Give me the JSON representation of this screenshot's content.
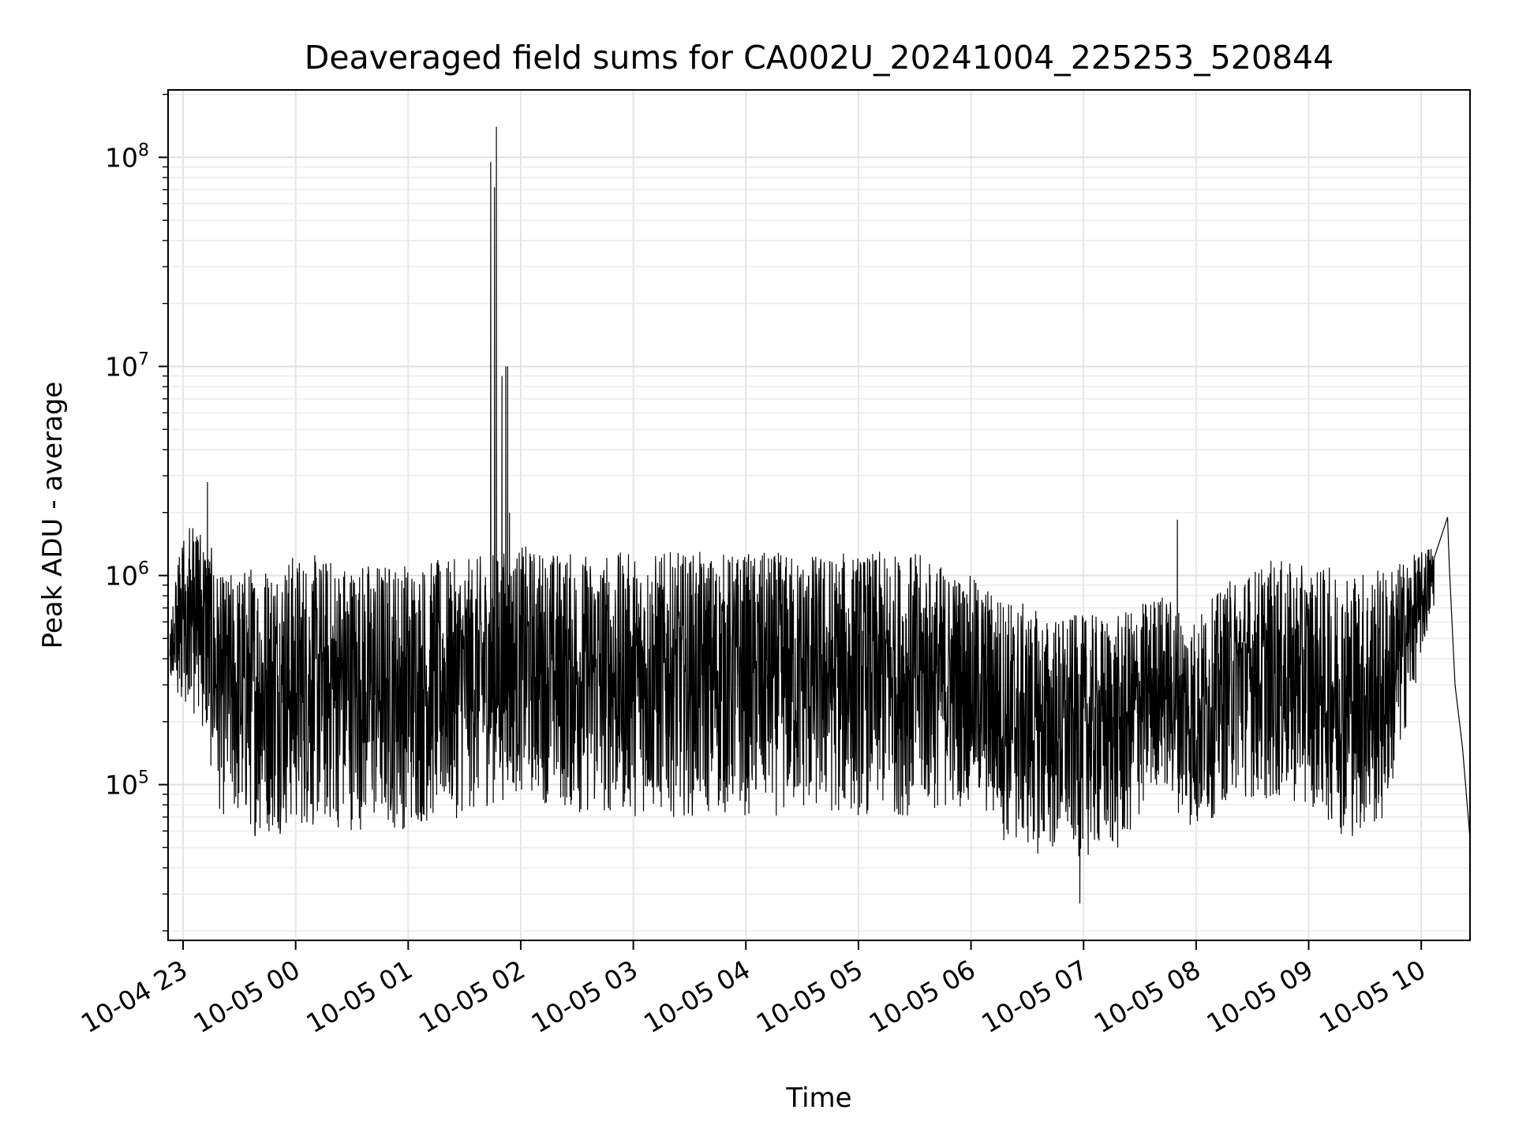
{
  "chart_data": {
    "type": "line",
    "title": "Deaveraged field sums for CA002U_20241004_225253_520844",
    "xlabel": "Time",
    "ylabel": "Peak ADU - average",
    "yscale": "log",
    "x_range": [
      "2024-10-04 22:52",
      "2024-10-05 10:26"
    ],
    "ylim": [
      18000,
      210000000
    ],
    "grid": true,
    "line_color": "#000000",
    "x_ticks": [
      "10-04 23",
      "10-05 00",
      "10-05 01",
      "10-05 02",
      "10-05 03",
      "10-05 04",
      "10-05 05",
      "10-05 06",
      "10-05 07",
      "10-05 08",
      "10-05 09",
      "10-05 10"
    ],
    "y_ticks": [
      {
        "value": 100000,
        "base": "10",
        "exp": "5"
      },
      {
        "value": 1000000,
        "base": "10",
        "exp": "6"
      },
      {
        "value": 10000000,
        "base": "10",
        "exp": "7"
      },
      {
        "value": 100000000,
        "base": "10",
        "exp": "8"
      }
    ],
    "series": [
      {
        "envelope": [
          {
            "t": "2024-10-04 22:53",
            "low": 300000,
            "high": 560000
          },
          {
            "t": "2024-10-04 23:00",
            "low": 250000,
            "high": 1800000
          },
          {
            "t": "2024-10-04 23:10",
            "low": 180000,
            "high": 1900000
          },
          {
            "t": "2024-10-04 23:20",
            "low": 70000,
            "high": 1000000
          },
          {
            "t": "2024-10-04 23:40",
            "low": 55000,
            "high": 1200000
          },
          {
            "t": "2024-10-05 00:00",
            "low": 60000,
            "high": 1300000
          },
          {
            "t": "2024-10-05 00:30",
            "low": 60000,
            "high": 1200000
          },
          {
            "t": "2024-10-05 01:00",
            "low": 60000,
            "high": 1200000
          },
          {
            "t": "2024-10-05 01:30",
            "low": 70000,
            "high": 1200000
          },
          {
            "t": "2024-10-05 02:00",
            "low": 90000,
            "high": 1400000
          },
          {
            "t": "2024-10-05 02:30",
            "low": 70000,
            "high": 1300000
          },
          {
            "t": "2024-10-05 03:00",
            "low": 70000,
            "high": 1300000
          },
          {
            "t": "2024-10-05 03:30",
            "low": 70000,
            "high": 1300000
          },
          {
            "t": "2024-10-05 04:00",
            "low": 70000,
            "high": 1300000
          },
          {
            "t": "2024-10-05 04:30",
            "low": 70000,
            "high": 1300000
          },
          {
            "t": "2024-10-05 05:00",
            "low": 70000,
            "high": 1300000
          },
          {
            "t": "2024-10-05 05:30",
            "low": 70000,
            "high": 1300000
          },
          {
            "t": "2024-10-05 06:00",
            "low": 80000,
            "high": 1000000
          },
          {
            "t": "2024-10-05 06:20",
            "low": 50000,
            "high": 800000
          },
          {
            "t": "2024-10-05 06:40",
            "low": 45000,
            "high": 650000
          },
          {
            "t": "2024-10-05 07:00",
            "low": 45000,
            "high": 650000
          },
          {
            "t": "2024-10-05 07:20",
            "low": 45000,
            "high": 650000
          },
          {
            "t": "2024-10-05 07:40",
            "low": 100000,
            "high": 850000
          },
          {
            "t": "2024-10-05 08:00",
            "low": 55000,
            "high": 650000
          },
          {
            "t": "2024-10-05 08:20",
            "low": 90000,
            "high": 1000000
          },
          {
            "t": "2024-10-05 08:40",
            "low": 80000,
            "high": 1200000
          },
          {
            "t": "2024-10-05 09:00",
            "low": 80000,
            "high": 1100000
          },
          {
            "t": "2024-10-05 09:20",
            "low": 55000,
            "high": 1100000
          },
          {
            "t": "2024-10-05 09:40",
            "low": 60000,
            "high": 1100000
          },
          {
            "t": "2024-10-05 10:00",
            "low": 400000,
            "high": 1300000
          },
          {
            "t": "2024-10-05 10:07",
            "low": 700000,
            "high": 1500000
          }
        ],
        "spikes": [
          {
            "t": "2024-10-04 23:13",
            "y": 2800000
          },
          {
            "t": "2024-10-05 01:44",
            "y": 95000000
          },
          {
            "t": "2024-10-05 01:46",
            "y": 72000000
          },
          {
            "t": "2024-10-05 01:47",
            "y": 140000000
          },
          {
            "t": "2024-10-05 01:50",
            "y": 9000000
          },
          {
            "t": "2024-10-05 01:52",
            "y": 10000000
          },
          {
            "t": "2024-10-05 01:53",
            "y": 10000000
          },
          {
            "t": "2024-10-05 01:54",
            "y": 2000000
          },
          {
            "t": "2024-10-05 06:58",
            "y": 27000
          },
          {
            "t": "2024-10-05 07:50",
            "y": 1850000
          },
          {
            "t": "2024-10-05 10:14",
            "y": 1900000
          }
        ],
        "tail": [
          {
            "t": "2024-10-05 10:15",
            "y": 1100000
          },
          {
            "t": "2024-10-05 10:18",
            "y": 300000
          },
          {
            "t": "2024-10-05 10:22",
            "y": 150000
          },
          {
            "t": "2024-10-05 10:26",
            "y": 55000
          }
        ]
      }
    ]
  }
}
